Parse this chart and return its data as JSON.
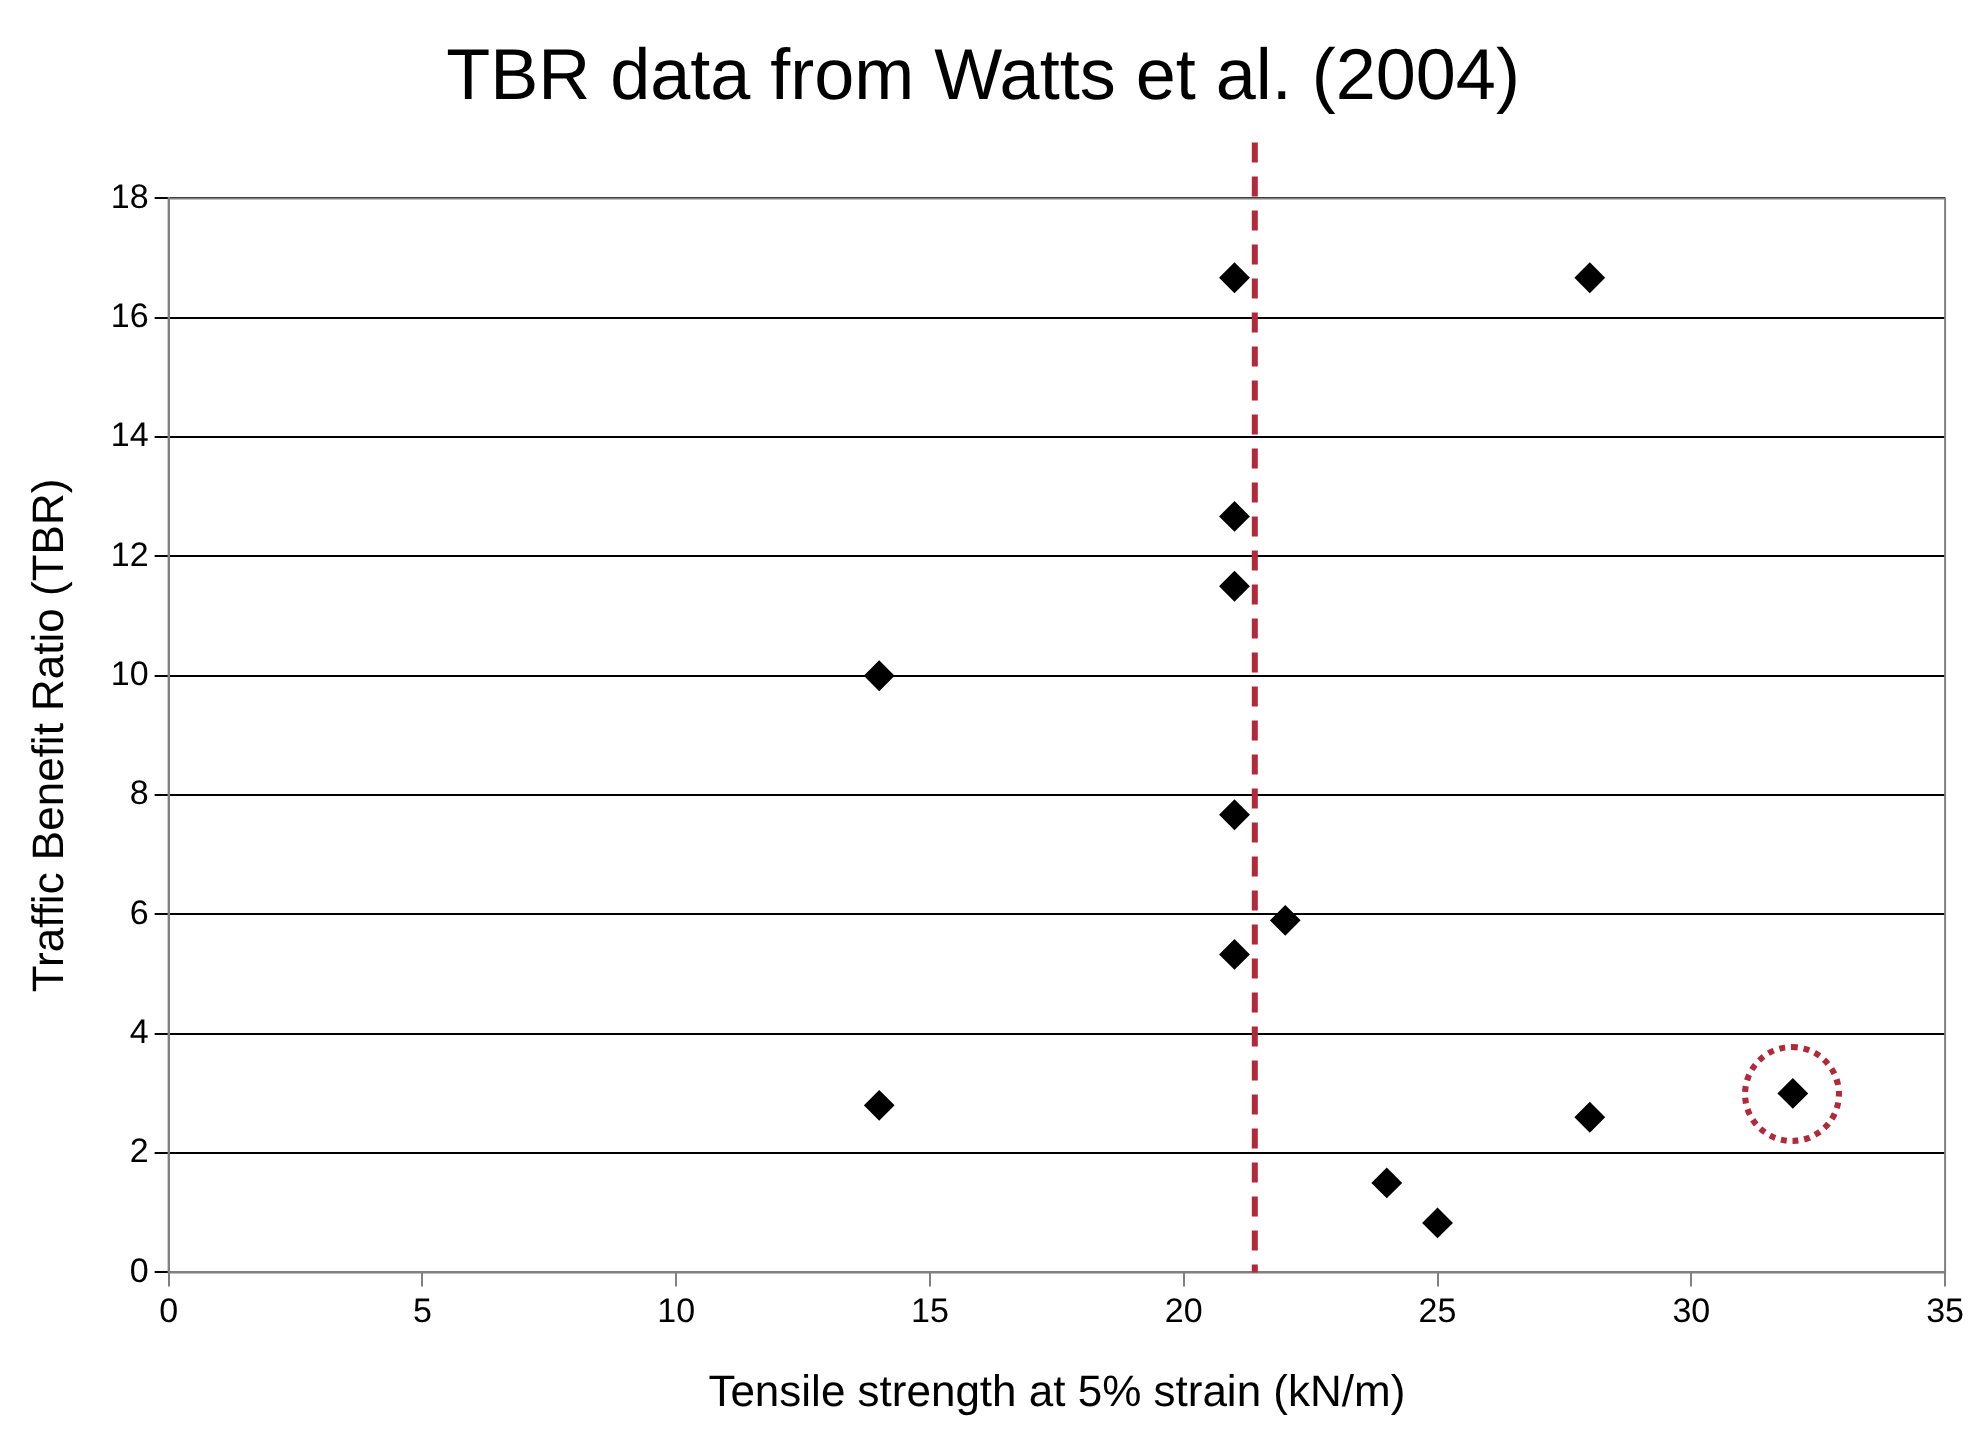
{
  "chart_data": {
    "type": "scatter",
    "title": "TBR data from Watts et al. (2004)",
    "xlabel": "Tensile strength at 5% strain (kN/m)",
    "ylabel": "Traffic Benefit Ratio (TBR)",
    "series": [
      {
        "color": "#000000",
        "x": [
          21,
          28,
          21,
          21,
          14,
          21,
          22,
          21,
          14,
          28,
          32,
          24,
          25
        ],
        "values": [
          16.67,
          16.67,
          12.67,
          11.5,
          10,
          7.67,
          5.9,
          5.33,
          2.8,
          2.6,
          3,
          1.5,
          0.83
        ]
      }
    ],
    "xlim": [
      0,
      35
    ],
    "xticks": [
      0,
      5,
      10,
      15,
      20,
      25,
      30,
      35
    ],
    "ylim": [
      0,
      18
    ],
    "yticks": [
      0,
      2,
      4,
      6,
      8,
      10,
      12,
      14,
      16,
      18
    ],
    "grid": "y",
    "marker": "diamond",
    "legend": false,
    "ref_lines": [
      {
        "axis": "x",
        "value": 21.4,
        "color": "#b22a3a",
        "line_style": "dashed"
      }
    ]
  }
}
